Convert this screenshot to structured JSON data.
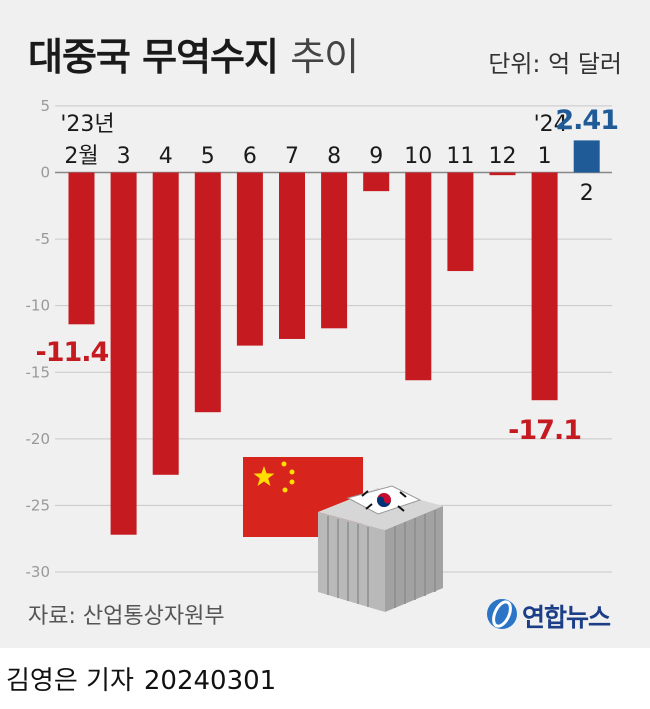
{
  "title": {
    "main": "대중국 무역수지",
    "sub": "추이"
  },
  "unit": "단위: 억 달러",
  "source": "자료: 산업통상자원부",
  "logo_text": "연합뉴스",
  "credit": {
    "author": "김영은 기자",
    "date": "20240301"
  },
  "colors": {
    "negative": "#c41a20",
    "positive": "#1e5b97",
    "grid": "#c8c8c8",
    "background": "#f0f0f0"
  },
  "chart_data": {
    "type": "bar",
    "title": "대중국 무역수지 추이",
    "ylabel": "단위: 억 달러",
    "ylim": [
      -30,
      5
    ],
    "yticks": [
      5,
      0,
      -5,
      -10,
      -15,
      -20,
      -25,
      -30
    ],
    "categories": [
      "2월",
      "3",
      "4",
      "5",
      "6",
      "7",
      "8",
      "9",
      "10",
      "11",
      "12",
      "1",
      "2"
    ],
    "year_labels": {
      "0": "'23년",
      "11": "'24"
    },
    "values": [
      -11.4,
      -27.2,
      -22.7,
      -18.0,
      -13.0,
      -12.5,
      -11.7,
      -1.4,
      -15.6,
      -7.4,
      -0.2,
      -17.1,
      2.41
    ],
    "highlighted": {
      "0": "-11.4",
      "11": "-17.1",
      "12": "2.41"
    },
    "grid": true,
    "illustration": [
      "china-flag",
      "korea-flag",
      "shipping-container"
    ]
  }
}
